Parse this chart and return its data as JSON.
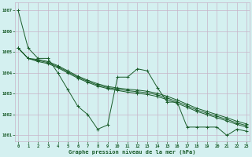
{
  "title": "Graphe pression niveau de la mer (hPa)",
  "background_color": "#d4f0f0",
  "grid_color": "#c8b4c8",
  "line_color": "#1a5c2a",
  "text_color": "#1a5c2a",
  "ylim": [
    1000.7,
    1007.4
  ],
  "xlim": [
    -0.3,
    23.3
  ],
  "yticks": [
    1001,
    1002,
    1003,
    1004,
    1005,
    1006,
    1007
  ],
  "xticks": [
    0,
    1,
    2,
    3,
    4,
    5,
    6,
    7,
    8,
    9,
    10,
    11,
    12,
    13,
    14,
    15,
    16,
    17,
    18,
    19,
    20,
    21,
    22,
    23
  ],
  "series": [
    [
      1007.0,
      1005.2,
      1004.7,
      1004.7,
      1004.0,
      1003.2,
      1002.4,
      1002.0,
      1001.3,
      1001.5,
      1003.8,
      1003.8,
      1004.2,
      1004.1,
      1003.3,
      1002.6,
      1002.6,
      1001.4,
      1001.4,
      1001.4,
      1001.4,
      1001.0,
      1001.3,
      1001.2
    ],
    [
      1005.2,
      1004.7,
      1004.65,
      1004.55,
      1004.35,
      1004.1,
      1003.85,
      1003.65,
      1003.48,
      1003.35,
      1003.28,
      1003.22,
      1003.18,
      1003.12,
      1003.02,
      1002.88,
      1002.7,
      1002.5,
      1002.3,
      1002.15,
      1002.0,
      1001.85,
      1001.68,
      1001.55
    ],
    [
      1005.2,
      1004.7,
      1004.6,
      1004.5,
      1004.3,
      1004.05,
      1003.8,
      1003.6,
      1003.42,
      1003.3,
      1003.22,
      1003.15,
      1003.1,
      1003.05,
      1002.95,
      1002.8,
      1002.62,
      1002.42,
      1002.22,
      1002.07,
      1001.92,
      1001.77,
      1001.6,
      1001.47
    ],
    [
      1005.2,
      1004.7,
      1004.55,
      1004.45,
      1004.25,
      1004.0,
      1003.75,
      1003.55,
      1003.37,
      1003.25,
      1003.16,
      1003.08,
      1003.02,
      1002.97,
      1002.87,
      1002.72,
      1002.54,
      1002.35,
      1002.15,
      1002.0,
      1001.85,
      1001.7,
      1001.53,
      1001.4
    ]
  ]
}
